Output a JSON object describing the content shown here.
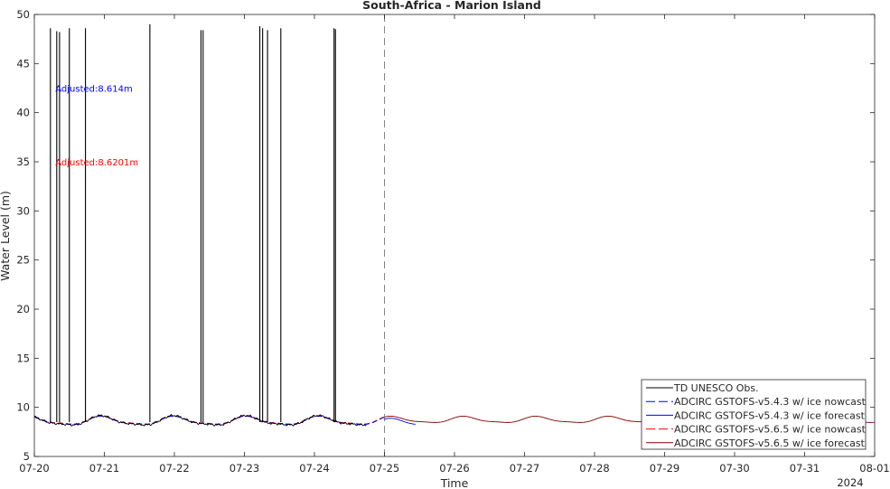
{
  "chart_data": {
    "type": "line",
    "title": "South-Africa - Marion Island",
    "xlabel": "Time",
    "ylabel": "Water Level (m)",
    "xlim": [
      "2024-07-20",
      "2024-08-01"
    ],
    "ylim": [
      5,
      50
    ],
    "yticks": [
      5,
      10,
      15,
      20,
      25,
      30,
      35,
      40,
      45,
      50
    ],
    "xticks": [
      "07-20",
      "07-21",
      "07-22",
      "07-23",
      "07-24",
      "07-25",
      "07-26",
      "07-27",
      "07-28",
      "07-29",
      "07-30",
      "07-31",
      "08-01"
    ],
    "x_year_label": "2024",
    "grid": false,
    "legend_position": "bottom-right",
    "nowcast_forecast_boundary": "07-25",
    "annotations": [
      {
        "text": "Adjusted:8.614m",
        "color": "#0000ff"
      },
      {
        "text": "Adjusted:8.6201m",
        "color": "#ff0000"
      }
    ],
    "series": [
      {
        "name": "TD UNESCO Obs.",
        "color": "#000000",
        "style": "solid",
        "start": "07-20",
        "end": "07-24.75",
        "base_level": 8.6,
        "amplitude": 0.45,
        "spikes": [
          {
            "t": "07-20.23",
            "y": 48.6
          },
          {
            "t": "07-20.32",
            "y": 48.3
          },
          {
            "t": "07-20.36",
            "y": 48.2
          },
          {
            "t": "07-20.50",
            "y": 48.6
          },
          {
            "t": "07-20.73",
            "y": 48.6
          },
          {
            "t": "07-21.65",
            "y": 49.0
          },
          {
            "t": "07-22.38",
            "y": 48.4
          },
          {
            "t": "07-22.41",
            "y": 48.4
          },
          {
            "t": "07-23.22",
            "y": 48.8
          },
          {
            "t": "07-23.26",
            "y": 48.6
          },
          {
            "t": "07-23.33",
            "y": 48.4
          },
          {
            "t": "07-23.52",
            "y": 48.6
          },
          {
            "t": "07-24.28",
            "y": 48.6
          },
          {
            "t": "07-24.30",
            "y": 48.5
          }
        ]
      },
      {
        "name": "ADCIRC GSTOFS-v5.4.3 w/ ice nowcast",
        "color": "#0000ff",
        "style": "dashed",
        "start": "07-20",
        "end": "07-25",
        "base_level": 8.6,
        "amplitude": 0.4
      },
      {
        "name": "ADCIRC GSTOFS-v5.4.3 w/ ice forecast",
        "color": "#0000ff",
        "style": "solid",
        "start": "07-25",
        "end": "07-25.45",
        "base_level": 8.45,
        "amplitude": 0.35
      },
      {
        "name": "ADCIRC GSTOFS-v5.6.5 w/ ice nowcast",
        "color": "#ff0000",
        "style": "dashed",
        "start": "07-20",
        "end": "07-25",
        "base_level": 8.65,
        "amplitude": 0.4
      },
      {
        "name": "ADCIRC GSTOFS-v5.6.5 w/ ice forecast",
        "color": "#800000",
        "style": "solid",
        "start": "07-25",
        "end": "08-01",
        "base_level": 8.72,
        "amplitude": 0.3
      }
    ]
  }
}
